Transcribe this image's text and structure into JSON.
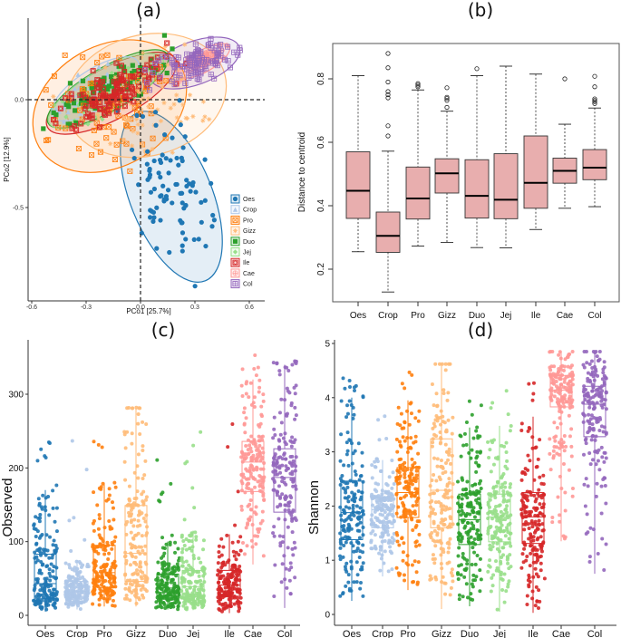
{
  "chart_data": [
    {
      "id": "a",
      "type": "scatter",
      "title": "(a)",
      "xlabel": "PCo1 [25.7%]",
      "ylabel": "PCo2 [12.9%]",
      "xlim": [
        -0.62,
        0.68
      ],
      "ylim": [
        -0.93,
        0.38
      ],
      "xticks": [
        -0.6,
        -0.3,
        0.0,
        0.3,
        0.6
      ],
      "xtick_labels": [
        "-0.6",
        "-0.3",
        "0.0",
        "0.3",
        "0.6"
      ],
      "yticks": [
        -0.5,
        0.0
      ],
      "ytick_labels": [
        "-0.5",
        "0.0"
      ],
      "reference_lines": {
        "x": 0,
        "y": 0,
        "style": "dashed"
      },
      "legend_position": "bottom-right",
      "groups": [
        {
          "name": "Oes",
          "color": "#1f77b4",
          "marker": "circle",
          "centroid": [
            0.06,
            -0.32
          ],
          "ellipse": {
            "cx": 0.17,
            "cy": -0.45,
            "rx": 0.5,
            "ry": 0.19,
            "angle": 68
          }
        },
        {
          "name": "Crop",
          "color": "#aec7e8",
          "marker": "triangle",
          "centroid": [
            -0.28,
            0.12
          ],
          "ellipse": {
            "cx": -0.25,
            "cy": 0.05,
            "rx": 0.28,
            "ry": 0.09,
            "angle": -33
          }
        },
        {
          "name": "Pro",
          "color": "#ff7f0e",
          "marker": "boxed-x",
          "centroid": [
            -0.2,
            0.04
          ],
          "ellipse": {
            "cx": -0.17,
            "cy": -0.03,
            "rx": 0.45,
            "ry": 0.28,
            "angle": -30
          }
        },
        {
          "name": "Gizz",
          "color": "#ffbb78",
          "marker": "asterisk",
          "centroid": [
            -0.05,
            0.05
          ],
          "ellipse": {
            "cx": 0.03,
            "cy": 0.02,
            "rx": 0.45,
            "ry": 0.28,
            "angle": -15
          }
        },
        {
          "name": "Duo",
          "color": "#2ca02c",
          "marker": "filled-square",
          "centroid": [
            -0.2,
            0.05
          ],
          "ellipse": {
            "cx": -0.18,
            "cy": 0.05,
            "rx": 0.38,
            "ry": 0.1,
            "angle": -30
          }
        },
        {
          "name": "Jej",
          "color": "#98df8a",
          "marker": "diamond-plus",
          "centroid": [
            -0.2,
            0.05
          ],
          "ellipse": {
            "cx": -0.19,
            "cy": 0.04,
            "rx": 0.36,
            "ry": 0.1,
            "angle": -30
          }
        },
        {
          "name": "Ile",
          "color": "#d62728",
          "marker": "star-of-david-box",
          "centroid": [
            -0.18,
            0.05
          ],
          "ellipse": {
            "cx": -0.16,
            "cy": 0.03,
            "rx": 0.4,
            "ry": 0.12,
            "angle": -28
          }
        },
        {
          "name": "Cae",
          "color": "#ff9896",
          "marker": "circle-plus",
          "centroid": [
            0.33,
            0.18
          ],
          "ellipse": {
            "cx": 0.35,
            "cy": 0.18,
            "rx": 0.16,
            "ry": 0.05,
            "angle": -30
          }
        },
        {
          "name": "Col",
          "color": "#9467bd",
          "marker": "boxed-plus",
          "centroid": [
            0.33,
            0.15
          ],
          "ellipse": {
            "cx": 0.3,
            "cy": 0.17,
            "rx": 0.26,
            "ry": 0.1,
            "angle": -20
          }
        }
      ]
    },
    {
      "id": "b",
      "type": "box",
      "title": "(b)",
      "xlabel": "",
      "ylabel": "Distance to centroid",
      "ylim": [
        0.1,
        0.9
      ],
      "yticks": [
        0.2,
        0.4,
        0.6,
        0.8
      ],
      "ytick_labels": [
        "0.2",
        "0.4",
        "0.6",
        "0.8"
      ],
      "fill": "#e8aeae",
      "categories": [
        "Oes",
        "Crop",
        "Pro",
        "Gizz",
        "Duo",
        "Jej",
        "Ile",
        "Cae",
        "Col"
      ],
      "boxes": [
        {
          "min": 0.255,
          "q1": 0.36,
          "median": 0.447,
          "q3": 0.57,
          "max": 0.81,
          "outliers": []
        },
        {
          "min": 0.128,
          "q1": 0.253,
          "median": 0.305,
          "q3": 0.38,
          "max": 0.572,
          "outliers": [
            0.62,
            0.652,
            0.74,
            0.75,
            0.76,
            0.79,
            0.835,
            0.88
          ]
        },
        {
          "min": 0.273,
          "q1": 0.358,
          "median": 0.423,
          "q3": 0.522,
          "max": 0.765,
          "outliers": [
            0.775,
            0.78,
            0.785
          ]
        },
        {
          "min": 0.284,
          "q1": 0.44,
          "median": 0.502,
          "q3": 0.548,
          "max": 0.698,
          "outliers": [
            0.71,
            0.732,
            0.738,
            0.742,
            0.772
          ]
        },
        {
          "min": 0.268,
          "q1": 0.361,
          "median": 0.431,
          "q3": 0.545,
          "max": 0.81,
          "outliers": [
            0.832
          ]
        },
        {
          "min": 0.267,
          "q1": 0.359,
          "median": 0.419,
          "q3": 0.564,
          "max": 0.84,
          "outliers": []
        },
        {
          "min": 0.325,
          "q1": 0.392,
          "median": 0.472,
          "q3": 0.62,
          "max": 0.815,
          "outliers": []
        },
        {
          "min": 0.392,
          "q1": 0.471,
          "median": 0.51,
          "q3": 0.55,
          "max": 0.657,
          "outliers": [
            0.8
          ]
        },
        {
          "min": 0.397,
          "q1": 0.482,
          "median": 0.52,
          "q3": 0.577,
          "max": 0.708,
          "outliers": [
            0.722,
            0.728,
            0.732,
            0.737,
            0.775,
            0.808
          ]
        }
      ]
    },
    {
      "id": "c",
      "type": "box-jitter",
      "title": "(c)",
      "xlabel": "",
      "ylabel": "Observed",
      "ylim": [
        -5,
        360
      ],
      "yticks": [
        0,
        100,
        200,
        300
      ],
      "ytick_labels": [
        "0",
        "100",
        "200",
        "300"
      ],
      "categories": [
        "Oes",
        "Crop",
        "Pro",
        "Gizz",
        "Duo",
        "Jej",
        "Ile",
        "Cae",
        "Col"
      ],
      "colors": [
        "#1f77b4",
        "#aec7e8",
        "#ff7f0e",
        "#ffbb78",
        "#2ca02c",
        "#98df8a",
        "#d62728",
        "#ff9896",
        "#9467bd"
      ],
      "boxes": [
        {
          "min": 5,
          "q1": 23,
          "median": 43,
          "q3": 83,
          "max": 170,
          "pmax": 238
        },
        {
          "min": 8,
          "q1": 26,
          "median": 33,
          "q3": 46,
          "max": 75,
          "pmax": 248
        },
        {
          "min": 12,
          "q1": 38,
          "median": 58,
          "q3": 95,
          "max": 180,
          "pmax": 278
        },
        {
          "min": 12,
          "q1": 46,
          "median": 84,
          "q3": 149,
          "max": 281,
          "pmax": 282
        },
        {
          "min": 8,
          "q1": 26,
          "median": 37,
          "q3": 56,
          "max": 100,
          "pmax": 213
        },
        {
          "min": 7,
          "q1": 25,
          "median": 39,
          "q3": 61,
          "max": 115,
          "pmax": 260
        },
        {
          "min": 3,
          "q1": 26,
          "median": 41,
          "q3": 61,
          "max": 110,
          "pmax": 262
        },
        {
          "min": 69,
          "q1": 168,
          "median": 208,
          "q3": 236,
          "max": 320,
          "pmax": 357
        },
        {
          "min": 10,
          "q1": 140,
          "median": 187,
          "q3": 226,
          "max": 340,
          "pmax": 345
        }
      ]
    },
    {
      "id": "d",
      "type": "box-jitter",
      "title": "(d)",
      "xlabel": "",
      "ylabel": "Shannon",
      "ylim": [
        -0.05,
        5.05
      ],
      "yticks": [
        0,
        1,
        2,
        3,
        4,
        5
      ],
      "ytick_labels": [
        "0",
        "1",
        "2",
        "3",
        "4",
        "5"
      ],
      "categories": [
        "Oes",
        "Crop",
        "Pro",
        "Gizz",
        "Duo",
        "Jej",
        "Ile",
        "Cae",
        "Col"
      ],
      "colors": [
        "#1f77b4",
        "#aec7e8",
        "#ff7f0e",
        "#ffbb78",
        "#2ca02c",
        "#98df8a",
        "#d62728",
        "#ff9896",
        "#9467bd"
      ],
      "boxes": [
        {
          "min": 0.25,
          "q1": 1.38,
          "median": 1.88,
          "q3": 2.46,
          "max": 4.0,
          "pmax": 4.4
        },
        {
          "min": 0.7,
          "q1": 1.6,
          "median": 1.93,
          "q3": 2.15,
          "max": 2.85,
          "pmax": 4.08
        },
        {
          "min": 0.45,
          "q1": 1.79,
          "median": 2.25,
          "q3": 2.71,
          "max": 3.95,
          "pmax": 4.52
        },
        {
          "min": 0.1,
          "q1": 1.6,
          "median": 2.29,
          "q3": 3.24,
          "max": 4.62,
          "pmax": 4.62
        },
        {
          "min": 0.15,
          "q1": 1.29,
          "median": 1.75,
          "q3": 2.22,
          "max": 3.45,
          "pmax": 4.23
        },
        {
          "min": 0.05,
          "q1": 1.34,
          "median": 1.8,
          "q3": 2.22,
          "max": 3.48,
          "pmax": 4.22
        },
        {
          "min": 0.03,
          "q1": 1.31,
          "median": 1.8,
          "q3": 2.25,
          "max": 3.65,
          "pmax": 4.53
        },
        {
          "min": 1.35,
          "q1": 3.83,
          "median": 4.14,
          "q3": 4.41,
          "max": 4.85,
          "pmax": 4.85
        },
        {
          "min": 0.75,
          "q1": 3.28,
          "median": 3.88,
          "q3": 4.21,
          "max": 4.85,
          "pmax": 4.85
        }
      ]
    }
  ]
}
